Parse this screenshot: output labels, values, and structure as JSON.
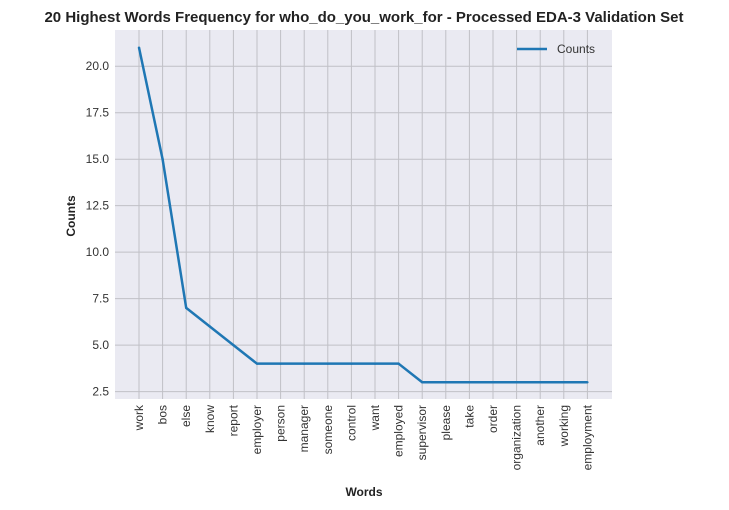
{
  "chart_data": {
    "type": "line",
    "title": "20 Highest Words Frequency for who_do_you_work_for - Processed EDA-3 Validation Set",
    "xlabel": "Words",
    "ylabel": "Counts",
    "categories": [
      "work",
      "bos",
      "else",
      "know",
      "report",
      "employer",
      "person",
      "manager",
      "someone",
      "control",
      "want",
      "employed",
      "supervisor",
      "please",
      "take",
      "order",
      "organization",
      "another",
      "working",
      "employment"
    ],
    "series": [
      {
        "name": "Counts",
        "values": [
          21,
          15,
          7,
          6,
          5,
          4,
          4,
          4,
          4,
          4,
          4,
          4,
          3,
          3,
          3,
          3,
          3,
          3,
          3,
          3
        ],
        "color": "#1f77b4"
      }
    ],
    "ylim": [
      2.1,
      21.95
    ],
    "yticks": [
      2.5,
      5.0,
      7.5,
      10.0,
      12.5,
      15.0,
      17.5,
      20.0
    ],
    "ytick_labels": [
      "2.5",
      "5.0",
      "7.5",
      "10.0",
      "12.5",
      "15.0",
      "17.5",
      "20.0"
    ],
    "grid": true,
    "legend_position": "top-right",
    "colors": {
      "plot_background": "#eaeaf2",
      "grid": "#c0c0c6",
      "line": "#1f77b4"
    }
  }
}
